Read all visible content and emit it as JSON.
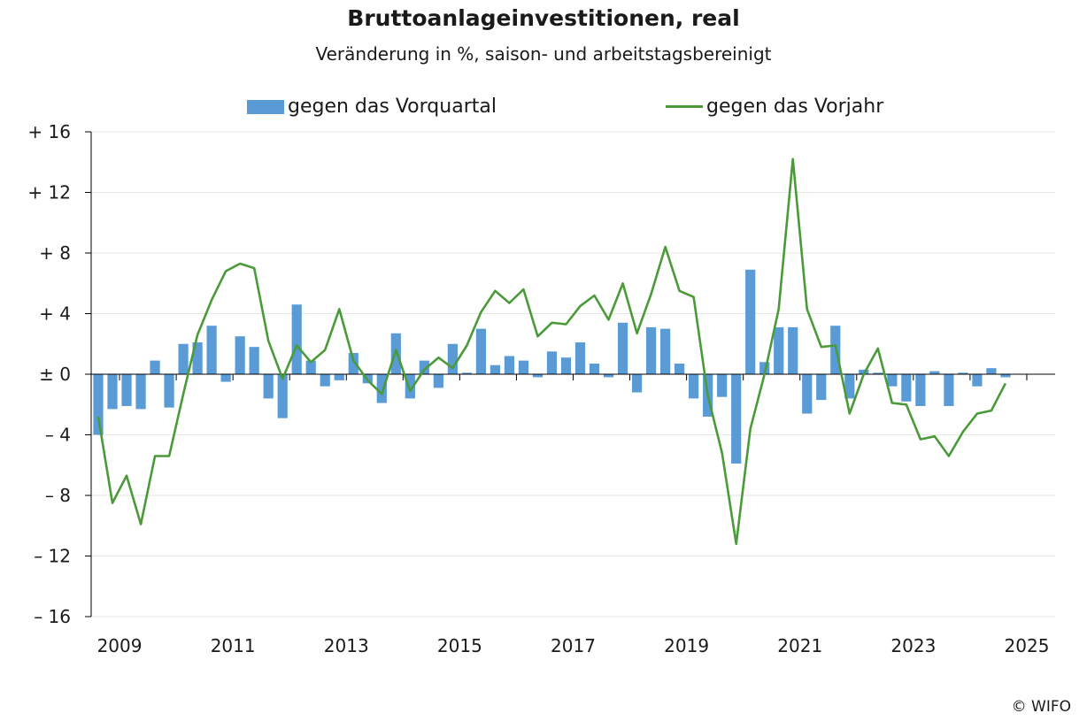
{
  "chart_data": {
    "type": "bar",
    "title": "Bruttoanlageinvestitionen, real",
    "subtitle": "Veränderung in %, saison- und arbeitstagsbereinigt",
    "ylim": [
      -16,
      16
    ],
    "y_ticks": [
      {
        "value": 16,
        "label": "+ 16"
      },
      {
        "value": 12,
        "label": "+ 12"
      },
      {
        "value": 8,
        "label": "+ 8"
      },
      {
        "value": 4,
        "label": "+ 4"
      },
      {
        "value": 0,
        "label": "± 0"
      },
      {
        "value": -4,
        "label": "– 4"
      },
      {
        "value": -8,
        "label": "– 8"
      },
      {
        "value": -12,
        "label": "– 12"
      },
      {
        "value": -16,
        "label": "– 16"
      }
    ],
    "x_ticks": [
      "2009",
      "2011",
      "2013",
      "2015",
      "2017",
      "2019",
      "2021",
      "2023",
      "2025"
    ],
    "x_start_year": 2008.5,
    "x_end_year": 2025.5,
    "grid": true,
    "legend_position": "top",
    "series": [
      {
        "name": "gegen das Vorquartal",
        "kind": "bar",
        "color": "#5b9bd5",
        "values": [
          -4.0,
          -2.3,
          -2.1,
          -2.3,
          0.9,
          -2.2,
          2.0,
          2.1,
          3.2,
          -0.5,
          2.5,
          1.8,
          -1.6,
          -2.9,
          4.6,
          0.9,
          -0.8,
          -0.4,
          1.4,
          -0.6,
          -1.9,
          2.7,
          -1.6,
          0.9,
          -0.9,
          2.0,
          0.1,
          3.0,
          0.6,
          1.2,
          0.9,
          -0.2,
          1.5,
          1.1,
          2.1,
          0.7,
          -0.2,
          3.4,
          -1.2,
          3.1,
          3.0,
          0.7,
          -1.6,
          -2.8,
          -1.5,
          -5.9,
          6.9,
          0.8,
          3.1,
          3.1,
          -2.6,
          -1.7,
          3.2,
          -1.6,
          0.3,
          0.1,
          -0.8,
          -1.8,
          -2.1,
          0.2,
          -2.1,
          0.1,
          -0.8,
          0.4,
          -0.2
        ]
      },
      {
        "name": "gegen das Vorjahr",
        "kind": "line",
        "color": "#4b9a3a",
        "values": [
          -2.8,
          -8.5,
          -6.7,
          -9.9,
          -5.4,
          -5.4,
          -1.3,
          2.6,
          4.9,
          6.8,
          7.3,
          7.0,
          2.2,
          -0.3,
          1.9,
          0.8,
          1.6,
          4.3,
          0.9,
          -0.4,
          -1.3,
          1.6,
          -1.1,
          0.3,
          1.1,
          0.4,
          1.9,
          4.1,
          5.5,
          4.7,
          5.6,
          2.5,
          3.4,
          3.3,
          4.5,
          5.2,
          3.6,
          6.0,
          2.7,
          5.3,
          8.4,
          5.5,
          5.1,
          -1.4,
          -5.2,
          -11.2,
          -3.6,
          0.0,
          4.3,
          14.2,
          4.3,
          1.8,
          1.9,
          -2.6,
          0.0,
          1.7,
          -1.9,
          -2.0,
          -4.3,
          -4.1,
          -5.4,
          -3.8,
          -2.6,
          -2.4,
          -0.6
        ]
      }
    ]
  },
  "legend": {
    "bar_label": "gegen das Vorquartal",
    "line_label": "gegen das Vorjahr"
  },
  "footer": {
    "copyright": "© WIFO"
  }
}
